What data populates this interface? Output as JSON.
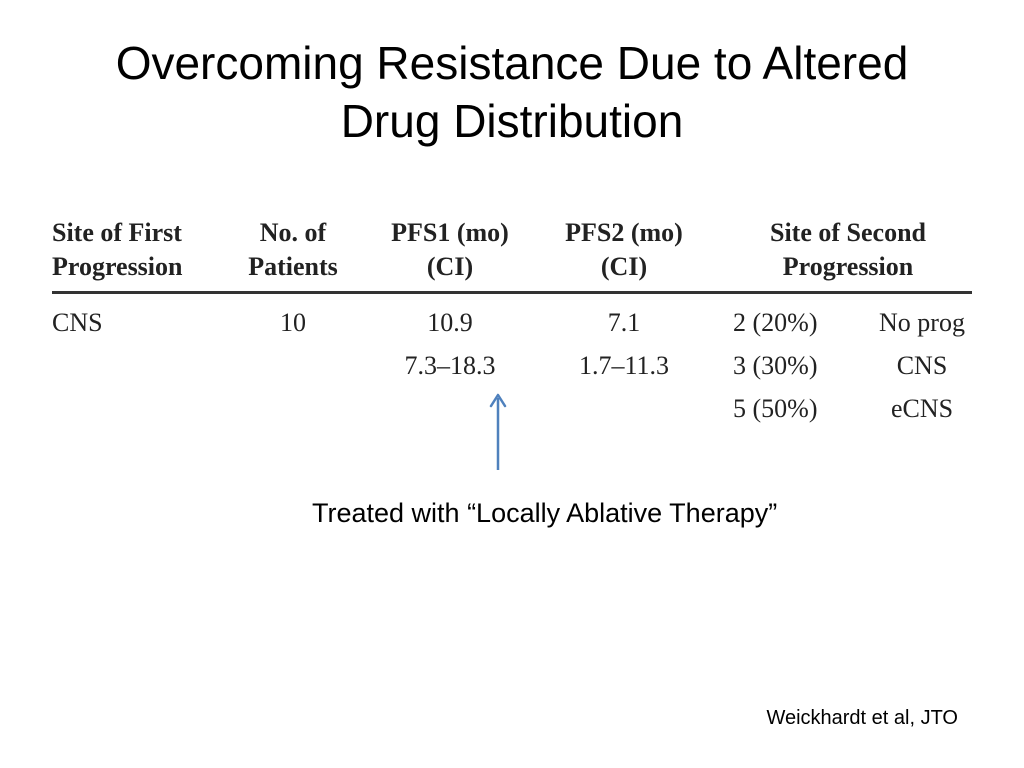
{
  "slide": {
    "title_line1": "Overcoming Resistance Due to Altered",
    "title_line2": "Drug Distribution",
    "caption": "Treated with “Locally Ablative Therapy”",
    "citation": "Weickhardt et al, JTO"
  },
  "table": {
    "headers": {
      "site_first": [
        "Site of First",
        "Progression"
      ],
      "patients": [
        "No. of",
        "Patients"
      ],
      "pfs1": [
        "PFS1 (mo)",
        "(CI)"
      ],
      "pfs2": [
        "PFS2 (mo)",
        "(CI)"
      ],
      "site_second": [
        "Site of Second",
        "Progression"
      ]
    },
    "row": {
      "site_first": "CNS",
      "patients": "10",
      "pfs1_value": "10.9",
      "pfs1_ci": "7.3–18.3",
      "pfs2_value": "7.1",
      "pfs2_ci": "1.7–11.3",
      "second_progression": [
        {
          "count": "2 (20%)",
          "site": "No prog"
        },
        {
          "count": "3 (30%)",
          "site": "CNS"
        },
        {
          "count": "5 (50%)",
          "site": "eCNS"
        }
      ]
    }
  },
  "colors": {
    "arrow": "#4f81bd"
  }
}
